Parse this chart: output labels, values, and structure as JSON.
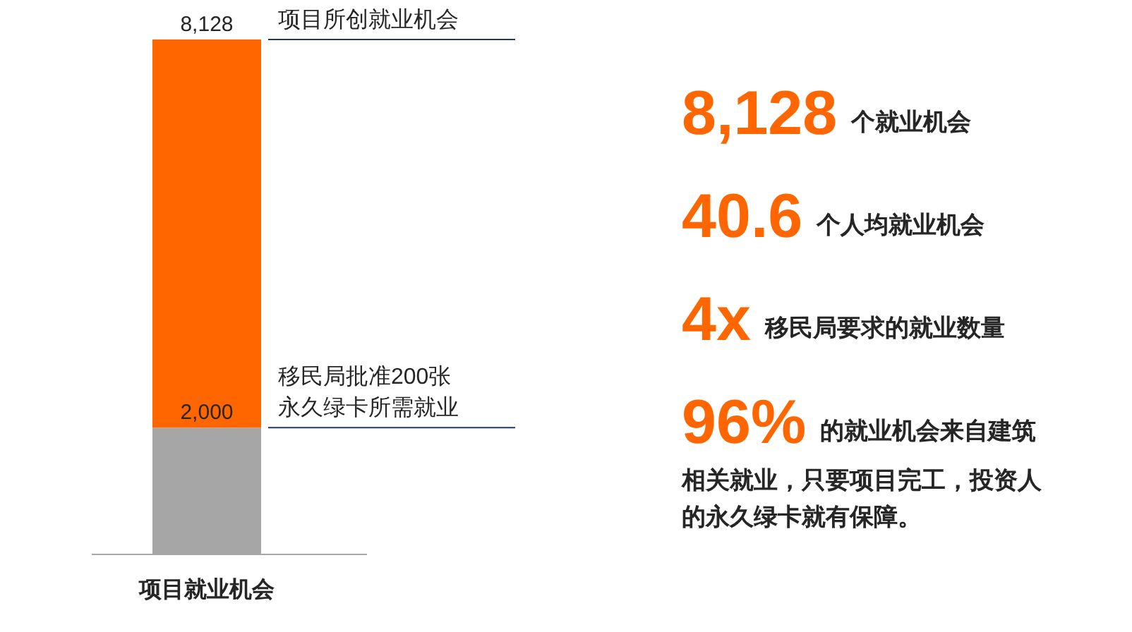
{
  "chart_data": [
    {
      "type": "bar",
      "stacked": true,
      "categories": [
        "项目就业机会"
      ],
      "series": [
        {
          "color": "#a6a6a6",
          "values": [
            2000
          ],
          "value_labels": [
            "2,000"
          ]
        },
        {
          "color": "#ff6600",
          "values": [
            6128
          ]
        }
      ],
      "totals": [
        "8,128"
      ],
      "ref_lines": [
        {
          "axis": "y",
          "value": 2000,
          "label": "移民局批准200张永久绿卡所需就业",
          "color": "#1f3864"
        },
        {
          "axis": "y",
          "value": 8128,
          "label": "项目所创就业机会",
          "color": "#1f3864"
        }
      ]
    },
    {
      "type": "other",
      "annotations": [
        "8,128",
        "个就业机会",
        "40.6",
        "个人均就业机会",
        "4x",
        "移民局要求的就业数量",
        "96%",
        "的就业机会来自建筑相关就业，只要项目完工，投资人的永久绿卡就有保障。"
      ]
    }
  ]
}
